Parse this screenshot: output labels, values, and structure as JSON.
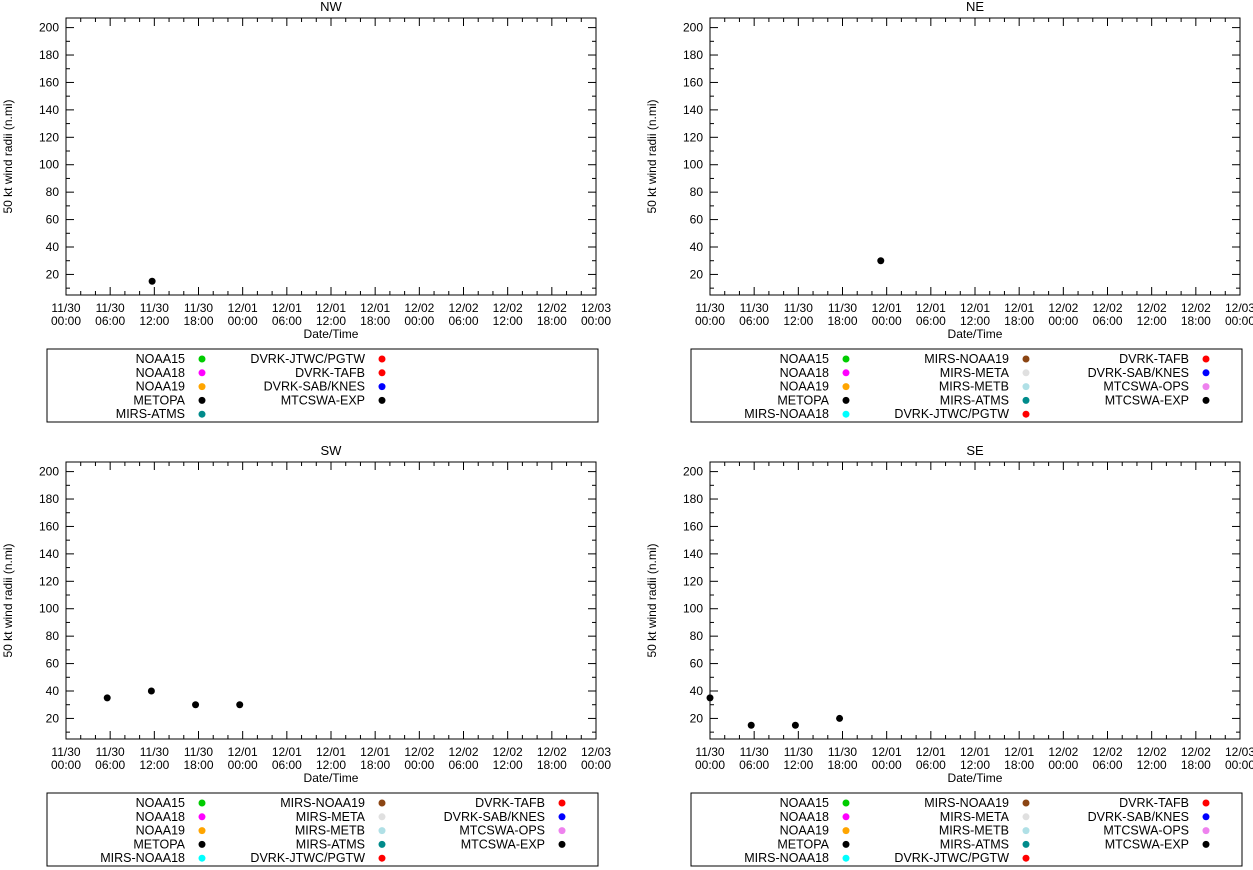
{
  "axis": {
    "ylabel": "50 kt wind radii (n.mi)",
    "xlabel": "Date/Time",
    "yticks": [
      20,
      40,
      60,
      80,
      100,
      120,
      140,
      160,
      180,
      200
    ],
    "ylim": [
      5,
      207
    ],
    "xlim_hours": [
      0,
      72
    ],
    "x_major_step_hours": 6,
    "x_minor_step_hours": 2,
    "y_minor_step": 10,
    "xtick_labels": [
      {
        "date": "11/30",
        "time": "00:00"
      },
      {
        "date": "11/30",
        "time": "06:00"
      },
      {
        "date": "11/30",
        "time": "12:00"
      },
      {
        "date": "11/30",
        "time": "18:00"
      },
      {
        "date": "12/01",
        "time": "00:00"
      },
      {
        "date": "12/01",
        "time": "06:00"
      },
      {
        "date": "12/01",
        "time": "12:00"
      },
      {
        "date": "12/01",
        "time": "18:00"
      },
      {
        "date": "12/02",
        "time": "00:00"
      },
      {
        "date": "12/02",
        "time": "06:00"
      },
      {
        "date": "12/02",
        "time": "12:00"
      },
      {
        "date": "12/02",
        "time": "18:00"
      },
      {
        "date": "12/03",
        "time": "00:00"
      }
    ]
  },
  "source_colors": {
    "NOAA15": "#00cc00",
    "NOAA18": "#ff00ff",
    "NOAA19": "#ffa500",
    "METOPA": "#000000",
    "MIRS-NOAA18": "#00ffff",
    "MIRS-NOAA19": "#8b4513",
    "MIRS-META": "#e0e0e0",
    "MIRS-METB": "#b0e0e6",
    "MIRS-ATMS": "#008b8b",
    "DVRK-JTWC/PGTW": "#ff0000",
    "DVRK-TAFB": "#ff0000",
    "DVRK-SAB/KNES": "#0000ff",
    "MTCSWA-OPS": "#ee82ee",
    "MTCSWA-EXP": "#000000"
  },
  "chart_data": [
    {
      "type": "scatter",
      "title": "NW",
      "xlabel": "Date/Time",
      "ylabel": "50 kt wind radii (n.mi)",
      "x_unit": "hours since 11/30 00:00",
      "xlim": [
        0,
        72
      ],
      "ylim": [
        5,
        207
      ],
      "point_color": "#000000",
      "points": [
        {
          "hours": 11.7,
          "value": 15
        }
      ],
      "legend_columns": [
        [
          "NOAA15",
          "NOAA18",
          "NOAA19",
          "METOPA",
          "MIRS-ATMS"
        ],
        [
          "DVRK-JTWC/PGTW",
          "DVRK-TAFB",
          "DVRK-SAB/KNES",
          "MTCSWA-EXP"
        ]
      ]
    },
    {
      "type": "scatter",
      "title": "NE",
      "xlabel": "Date/Time",
      "ylabel": "50 kt wind radii (n.mi)",
      "x_unit": "hours since 11/30 00:00",
      "xlim": [
        0,
        72
      ],
      "ylim": [
        5,
        207
      ],
      "point_color": "#000000",
      "points": [
        {
          "hours": 23.2,
          "value": 30
        }
      ],
      "legend_columns": [
        [
          "NOAA15",
          "NOAA18",
          "NOAA19",
          "METOPA",
          "MIRS-NOAA18"
        ],
        [
          "MIRS-NOAA19",
          "MIRS-META",
          "MIRS-METB",
          "MIRS-ATMS",
          "DVRK-JTWC/PGTW"
        ],
        [
          "DVRK-TAFB",
          "DVRK-SAB/KNES",
          "MTCSWA-OPS",
          "MTCSWA-EXP"
        ]
      ]
    },
    {
      "type": "scatter",
      "title": "SW",
      "xlabel": "Date/Time",
      "ylabel": "50 kt wind radii (n.mi)",
      "x_unit": "hours since 11/30 00:00",
      "xlim": [
        0,
        72
      ],
      "ylim": [
        5,
        207
      ],
      "point_color": "#000000",
      "points": [
        {
          "hours": 5.6,
          "value": 35
        },
        {
          "hours": 11.6,
          "value": 40
        },
        {
          "hours": 17.6,
          "value": 30
        },
        {
          "hours": 23.6,
          "value": 30
        }
      ],
      "legend_columns": [
        [
          "NOAA15",
          "NOAA18",
          "NOAA19",
          "METOPA",
          "MIRS-NOAA18"
        ],
        [
          "MIRS-NOAA19",
          "MIRS-META",
          "MIRS-METB",
          "MIRS-ATMS",
          "DVRK-JTWC/PGTW"
        ],
        [
          "DVRK-TAFB",
          "DVRK-SAB/KNES",
          "MTCSWA-OPS",
          "MTCSWA-EXP"
        ]
      ]
    },
    {
      "type": "scatter",
      "title": "SE",
      "xlabel": "Date/Time",
      "ylabel": "50 kt wind radii (n.mi)",
      "x_unit": "hours since 11/30 00:00",
      "xlim": [
        0,
        72
      ],
      "ylim": [
        5,
        207
      ],
      "point_color": "#000000",
      "points": [
        {
          "hours": 0.0,
          "value": 35
        },
        {
          "hours": 5.6,
          "value": 15
        },
        {
          "hours": 11.6,
          "value": 15
        },
        {
          "hours": 17.6,
          "value": 20
        }
      ],
      "legend_columns": [
        [
          "NOAA15",
          "NOAA18",
          "NOAA19",
          "METOPA",
          "MIRS-NOAA18"
        ],
        [
          "MIRS-NOAA19",
          "MIRS-META",
          "MIRS-METB",
          "MIRS-ATMS",
          "DVRK-JTWC/PGTW"
        ],
        [
          "DVRK-TAFB",
          "DVRK-SAB/KNES",
          "MTCSWA-OPS",
          "MTCSWA-EXP"
        ]
      ]
    }
  ]
}
